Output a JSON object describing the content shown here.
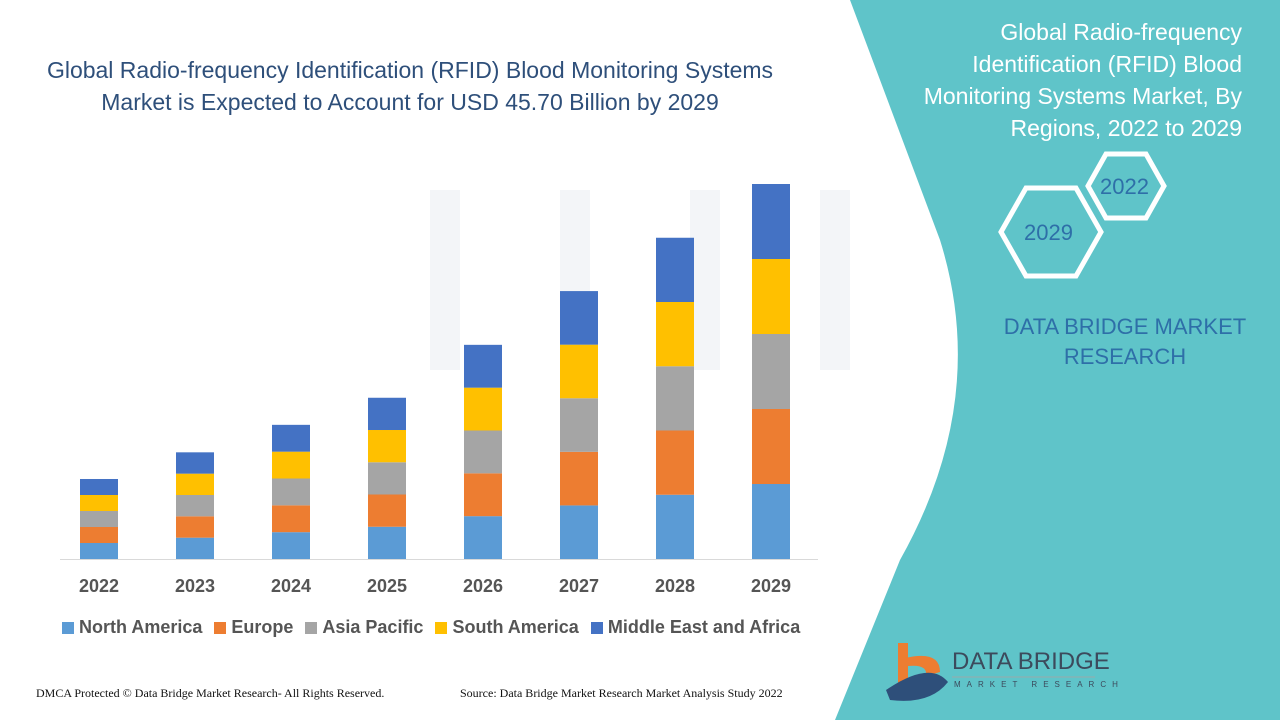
{
  "title": "Global Radio-frequency Identification (RFID) Blood Monitoring Systems Market is Expected to Account for USD 45.70 Billion by 2029",
  "side_panel": {
    "title": "Global Radio-frequency Identification (RFID) Blood Monitoring Systems Market, By Regions, 2022 to 2029",
    "hex_start": "2022",
    "hex_end": "2029",
    "brand": "DATA BRIDGE MARKET RESEARCH",
    "panel_color": "#5fc4c9"
  },
  "logo": {
    "name": "DATA BRIDGE",
    "sub": "MARKET RESEARCH"
  },
  "footer": {
    "left": "DMCA Protected © Data Bridge Market Research- All Rights Reserved.",
    "right": "Source: Data Bridge Market Research Market Analysis Study 2022"
  },
  "chart_data": {
    "type": "bar",
    "stacked": true,
    "title": "",
    "xlabel": "",
    "ylabel": "",
    "grid": false,
    "legend_placement": "bottom",
    "categories": [
      "2022",
      "2023",
      "2024",
      "2025",
      "2026",
      "2027",
      "2028",
      "2029"
    ],
    "ylim": [
      0,
      46
    ],
    "series": [
      {
        "name": "North America",
        "color": "#5b9bd5",
        "values": [
          1.95,
          2.6,
          3.27,
          3.93,
          5.22,
          6.53,
          7.83,
          9.14
        ]
      },
      {
        "name": "Europe",
        "color": "#ed7d31",
        "values": [
          1.95,
          2.6,
          3.27,
          3.93,
          5.22,
          6.53,
          7.83,
          9.14
        ]
      },
      {
        "name": "Asia Pacific",
        "color": "#a5a5a5",
        "values": [
          1.95,
          2.6,
          3.27,
          3.93,
          5.22,
          6.53,
          7.83,
          9.14
        ]
      },
      {
        "name": "South America",
        "color": "#ffc000",
        "values": [
          1.95,
          2.6,
          3.27,
          3.93,
          5.22,
          6.53,
          7.83,
          9.14
        ]
      },
      {
        "name": "Middle East and Africa",
        "color": "#4472c4",
        "values": [
          1.95,
          2.6,
          3.27,
          3.93,
          5.22,
          6.53,
          7.83,
          9.14
        ]
      }
    ]
  }
}
